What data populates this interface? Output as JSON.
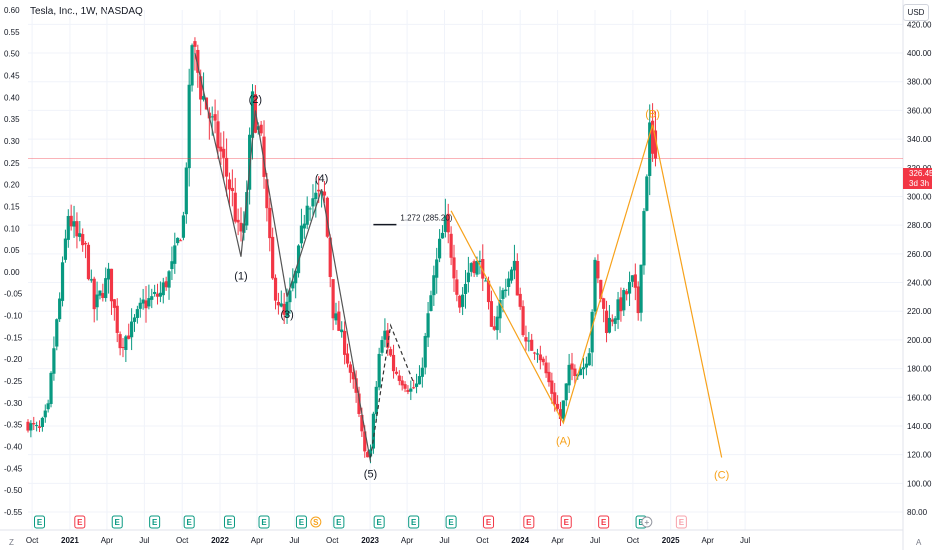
{
  "title": "Tesla, Inc., 1W, NASDAQ",
  "currency_button": "USD",
  "last_price": {
    "value": "326.45",
    "countdown": "3d 3h"
  },
  "corner_left": "Z",
  "corner_right": "A",
  "colors": {
    "up": "#089981",
    "down": "#f23645",
    "wave": "#f7a21b",
    "impulse": "#555555",
    "grid": "#f0f3fa",
    "price_line": "#f23645"
  },
  "chart_data": [
    {
      "type": "candlestick",
      "title": "Tesla, Inc., 1W, NASDAQ",
      "x_axis": {
        "range": [
          "2020-09-21",
          "2026-07-20"
        ],
        "ticks": [
          {
            "t": "2020-10-01",
            "label": "Oct",
            "bold": false
          },
          {
            "t": "2021-01-01",
            "label": "2021",
            "bold": true
          },
          {
            "t": "2021-04-01",
            "label": "Apr",
            "bold": false
          },
          {
            "t": "2021-07-01",
            "label": "Jul",
            "bold": false
          },
          {
            "t": "2021-10-01",
            "label": "Oct",
            "bold": false
          },
          {
            "t": "2022-01-01",
            "label": "2022",
            "bold": true
          },
          {
            "t": "2022-04-01",
            "label": "Apr",
            "bold": false
          },
          {
            "t": "2022-07-01",
            "label": "Jul",
            "bold": false
          },
          {
            "t": "2022-10-01",
            "label": "Oct",
            "bold": false
          },
          {
            "t": "2023-01-01",
            "label": "2023",
            "bold": true
          },
          {
            "t": "2023-04-01",
            "label": "Apr",
            "bold": false
          },
          {
            "t": "2023-07-01",
            "label": "Jul",
            "bold": false
          },
          {
            "t": "2023-10-01",
            "label": "Oct",
            "bold": false
          },
          {
            "t": "2024-01-01",
            "label": "2024",
            "bold": true
          },
          {
            "t": "2024-04-01",
            "label": "Apr",
            "bold": false
          },
          {
            "t": "2024-07-01",
            "label": "Jul",
            "bold": false
          },
          {
            "t": "2024-10-01",
            "label": "Oct",
            "bold": false
          },
          {
            "t": "2025-01-01",
            "label": "2025",
            "bold": true
          },
          {
            "t": "2025-04-01",
            "label": "Apr",
            "bold": false
          },
          {
            "t": "2025-07-01",
            "label": "Jul",
            "bold": false
          }
        ]
      },
      "y_axis_right": {
        "range": [
          80,
          430
        ],
        "ticks": [
          80,
          100,
          120,
          140,
          160,
          180,
          200,
          220,
          240,
          260,
          280,
          300,
          320,
          340,
          360,
          380,
          400,
          420
        ],
        "labels": [
          "80.00",
          "100.00",
          "120.00",
          "140.00",
          "160.00",
          "180.00",
          "200.00",
          "220.00",
          "240.00",
          "260.00",
          "280.00",
          "300.00",
          "320.00",
          "340.00",
          "360.00",
          "380.00",
          "400.00",
          "420.00"
        ]
      },
      "y_axis_left": {
        "range": [
          -0.55,
          0.6
        ],
        "ticks": [
          -0.55,
          -0.5,
          -0.45,
          -0.4,
          -0.35,
          -0.3,
          -0.25,
          -0.2,
          -0.15,
          -0.1,
          -0.05,
          0,
          0.05,
          0.1,
          0.15,
          0.2,
          0.25,
          0.3,
          0.35,
          0.4,
          0.45,
          0.5,
          0.55,
          0.6
        ],
        "labels": [
          "-0.55",
          "-0.50",
          "-0.45",
          "-0.40",
          "-0.35",
          "-0.30",
          "-0.25",
          "-0.20",
          "-0.15",
          "-0.10",
          "-0.05",
          "0.00",
          "0.05",
          "0.10",
          "0.15",
          "0.20",
          "0.25",
          "0.30",
          "0.35",
          "0.40",
          "0.45",
          "0.50",
          "0.55",
          "0.60"
        ]
      },
      "anchors": [
        {
          "t": "2020-09-21",
          "p": 142
        },
        {
          "t": "2020-10-26",
          "p": 137
        },
        {
          "t": "2020-11-16",
          "p": 152
        },
        {
          "t": "2020-11-30",
          "p": 195
        },
        {
          "t": "2020-12-14",
          "p": 228
        },
        {
          "t": "2021-01-04",
          "p": 288
        },
        {
          "t": "2021-01-25",
          "p": 270
        },
        {
          "t": "2021-02-15",
          "p": 262
        },
        {
          "t": "2021-03-08",
          "p": 222
        },
        {
          "t": "2021-04-12",
          "p": 244
        },
        {
          "t": "2021-05-10",
          "p": 197
        },
        {
          "t": "2021-06-07",
          "p": 208
        },
        {
          "t": "2021-07-05",
          "p": 225
        },
        {
          "t": "2021-08-16",
          "p": 232
        },
        {
          "t": "2021-09-13",
          "p": 250
        },
        {
          "t": "2021-10-11",
          "p": 285
        },
        {
          "t": "2021-11-01",
          "p": 408
        },
        {
          "t": "2021-11-22",
          "p": 375
        },
        {
          "t": "2021-12-20",
          "p": 350
        },
        {
          "t": "2022-01-10",
          "p": 330
        },
        {
          "t": "2022-02-07",
          "p": 300
        },
        {
          "t": "2022-02-21",
          "p": 275
        },
        {
          "t": "2022-03-07",
          "p": 275
        },
        {
          "t": "2022-03-28",
          "p": 365
        },
        {
          "t": "2022-04-18",
          "p": 335
        },
        {
          "t": "2022-05-16",
          "p": 240
        },
        {
          "t": "2022-06-13",
          "p": 215
        },
        {
          "t": "2022-07-11",
          "p": 245
        },
        {
          "t": "2022-08-08",
          "p": 300
        },
        {
          "t": "2022-09-19",
          "p": 298
        },
        {
          "t": "2022-10-10",
          "p": 220
        },
        {
          "t": "2022-11-07",
          "p": 195
        },
        {
          "t": "2022-12-05",
          "p": 160
        },
        {
          "t": "2022-12-26",
          "p": 120
        },
        {
          "t": "2023-01-09",
          "p": 123
        },
        {
          "t": "2023-01-30",
          "p": 190
        },
        {
          "t": "2023-02-13",
          "p": 205
        },
        {
          "t": "2023-03-06",
          "p": 180
        },
        {
          "t": "2023-04-17",
          "p": 165
        },
        {
          "t": "2023-05-08",
          "p": 170
        },
        {
          "t": "2023-06-05",
          "p": 230
        },
        {
          "t": "2023-06-26",
          "p": 265
        },
        {
          "t": "2023-07-10",
          "p": 280
        },
        {
          "t": "2023-07-24",
          "p": 262
        },
        {
          "t": "2023-08-14",
          "p": 225
        },
        {
          "t": "2023-09-11",
          "p": 255
        },
        {
          "t": "2023-10-09",
          "p": 250
        },
        {
          "t": "2023-10-30",
          "p": 205
        },
        {
          "t": "2023-12-04",
          "p": 240
        },
        {
          "t": "2023-12-25",
          "p": 250
        },
        {
          "t": "2024-01-22",
          "p": 195
        },
        {
          "t": "2024-02-19",
          "p": 195
        },
        {
          "t": "2024-04-15",
          "p": 145
        },
        {
          "t": "2024-05-06",
          "p": 178
        },
        {
          "t": "2024-06-10",
          "p": 182
        },
        {
          "t": "2024-06-24",
          "p": 195
        },
        {
          "t": "2024-07-08",
          "p": 250
        },
        {
          "t": "2024-08-05",
          "p": 210
        },
        {
          "t": "2024-09-09",
          "p": 225
        },
        {
          "t": "2024-10-07",
          "p": 240
        },
        {
          "t": "2024-10-21",
          "p": 220
        },
        {
          "t": "2024-10-28",
          "p": 260
        },
        {
          "t": "2024-11-11",
          "p": 320
        },
        {
          "t": "2024-11-18",
          "p": 346
        },
        {
          "t": "2024-11-25",
          "p": 326.45
        }
      ],
      "last_price_line": 326.45,
      "impulse_wave": {
        "points": [
          {
            "t": "2021-11-01",
            "p": 400
          },
          {
            "t": "2022-02-21",
            "p": 258
          },
          {
            "t": "2022-03-28",
            "p": 360
          },
          {
            "t": "2022-06-13",
            "p": 230
          },
          {
            "t": "2022-09-05",
            "p": 305
          },
          {
            "t": "2023-01-02",
            "p": 115
          }
        ],
        "labels": [
          {
            "t": "2022-02-21",
            "p": 245,
            "text": "(1)"
          },
          {
            "t": "2022-03-28",
            "p": 368,
            "text": "(2)"
          },
          {
            "t": "2022-06-13",
            "p": 218,
            "text": "(3)"
          },
          {
            "t": "2022-09-05",
            "p": 313,
            "text": "(4)"
          },
          {
            "t": "2023-01-02",
            "p": 107,
            "text": "(5)"
          }
        ]
      },
      "dashed_path": [
        {
          "t": "2023-01-02",
          "p": 118
        },
        {
          "t": "2023-02-20",
          "p": 210
        },
        {
          "t": "2023-04-17",
          "p": 170
        }
      ],
      "abc_wave": {
        "points": [
          {
            "t": "2023-07-17",
            "p": 290
          },
          {
            "t": "2024-04-15",
            "p": 142
          },
          {
            "t": "2024-11-18",
            "p": 350
          },
          {
            "t": "2025-05-05",
            "p": 118
          }
        ],
        "labels": [
          {
            "t": "2024-04-15",
            "p": 130,
            "text": "(A)"
          },
          {
            "t": "2024-11-18",
            "p": 358,
            "text": "(B)"
          },
          {
            "t": "2025-05-05",
            "p": 106,
            "text": "(C)"
          }
        ]
      },
      "fib_extension": {
        "label": "1.272 (285.20)",
        "value": 285.2,
        "from": "2023-01-09",
        "to": "2023-03-06"
      },
      "events": [
        {
          "t": "2020-10-19",
          "kind": "E",
          "color": "green"
        },
        {
          "t": "2021-01-25",
          "kind": "E",
          "color": "red"
        },
        {
          "t": "2021-04-26",
          "kind": "E",
          "color": "green"
        },
        {
          "t": "2021-07-26",
          "kind": "E",
          "color": "green"
        },
        {
          "t": "2021-10-18",
          "kind": "E",
          "color": "green"
        },
        {
          "t": "2022-01-24",
          "kind": "E",
          "color": "green"
        },
        {
          "t": "2022-04-18",
          "kind": "E",
          "color": "green"
        },
        {
          "t": "2022-07-18",
          "kind": "E",
          "color": "green"
        },
        {
          "t": "2022-08-22",
          "kind": "S",
          "color": "orange"
        },
        {
          "t": "2022-10-17",
          "kind": "E",
          "color": "green"
        },
        {
          "t": "2023-01-23",
          "kind": "E",
          "color": "green"
        },
        {
          "t": "2023-04-17",
          "kind": "E",
          "color": "green"
        },
        {
          "t": "2023-07-17",
          "kind": "E",
          "color": "green"
        },
        {
          "t": "2023-10-16",
          "kind": "E",
          "color": "red"
        },
        {
          "t": "2024-01-22",
          "kind": "E",
          "color": "red"
        },
        {
          "t": "2024-04-22",
          "kind": "E",
          "color": "red"
        },
        {
          "t": "2024-07-22",
          "kind": "E",
          "color": "red"
        },
        {
          "t": "2024-10-21",
          "kind": "E",
          "color": "green"
        },
        {
          "t": "2024-11-04",
          "kind": "+",
          "color": "gray"
        },
        {
          "t": "2025-01-27",
          "kind": "E",
          "color": "pink"
        }
      ]
    }
  ]
}
